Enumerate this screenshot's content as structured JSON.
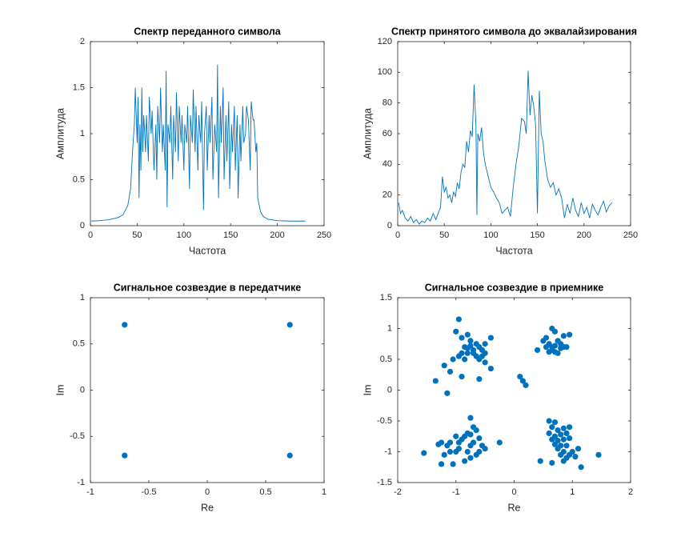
{
  "chart_data": [
    {
      "type": "line",
      "title": "Спектр переданного символа",
      "xlabel": "Частота",
      "ylabel": "Амплитуда",
      "color": "#0072BD",
      "x": [
        1,
        10,
        20,
        30,
        35,
        40,
        43,
        45,
        47,
        48,
        50,
        51,
        52,
        53,
        54,
        55,
        56,
        57,
        59,
        60,
        62,
        63,
        65,
        66,
        68,
        70,
        71,
        72,
        74,
        75,
        77,
        78,
        80,
        81,
        82,
        83,
        85,
        86,
        88,
        89,
        91,
        92,
        94,
        95,
        97,
        98,
        100,
        101,
        103,
        104,
        106,
        107,
        109,
        110,
        112,
        113,
        115,
        116,
        118,
        119,
        121,
        122,
        124,
        125,
        127,
        128,
        130,
        131,
        133,
        135,
        136,
        137,
        139,
        140,
        142,
        143,
        145,
        146,
        148,
        149,
        151,
        152,
        154,
        155,
        157,
        158,
        160,
        161,
        163,
        164,
        166,
        167,
        169,
        171,
        172,
        174,
        175,
        177,
        178,
        179,
        180,
        182,
        185,
        190,
        200,
        215,
        230
      ],
      "values": [
        0.05,
        0.055,
        0.065,
        0.09,
        0.12,
        0.22,
        0.4,
        0.8,
        1.1,
        1.5,
        0.9,
        1.4,
        0.3,
        1.1,
        0.6,
        1.5,
        0.8,
        1.2,
        0.8,
        1.2,
        0.7,
        1.4,
        1.0,
        1.25,
        0.6,
        1.1,
        0.5,
        1.3,
        0.9,
        1.5,
        0.8,
        1.1,
        0.6,
        1.68,
        0.2,
        1.1,
        0.9,
        1.3,
        0.5,
        1.2,
        0.8,
        1.45,
        0.7,
        1.3,
        0.9,
        1.2,
        0.6,
        1.1,
        0.9,
        1.3,
        0.4,
        1.2,
        0.9,
        1.48,
        0.8,
        1.3,
        0.6,
        1.2,
        0.9,
        1.35,
        0.17,
        1.0,
        1.3,
        0.6,
        1.2,
        0.9,
        1.4,
        0.5,
        1.1,
        0.8,
        1.75,
        0.3,
        1.3,
        0.9,
        1.5,
        0.5,
        1.2,
        0.7,
        1.35,
        0.4,
        1.1,
        0.8,
        1.3,
        0.6,
        1.2,
        0.3,
        1.1,
        0.7,
        1.3,
        0.9,
        1.0,
        1.3,
        1.15,
        0.6,
        1.35,
        1.15,
        1.15,
        0.8,
        0.9,
        0.3,
        0.25,
        0.15,
        0.1,
        0.07,
        0.055,
        0.05,
        0.05
      ],
      "xlim": [
        0,
        250
      ],
      "xticks": [
        0,
        50,
        100,
        150,
        200,
        250
      ],
      "ylim": [
        0,
        2
      ],
      "yticks": [
        0,
        0.5,
        1,
        1.5,
        2
      ]
    },
    {
      "type": "line",
      "title": "Спектр принятого символа до эквалайзирования",
      "xlabel": "Частота",
      "ylabel": "Амплитуда",
      "color": "#0072BD",
      "x": [
        1,
        3,
        5,
        8,
        11,
        14,
        17,
        20,
        23,
        26,
        29,
        32,
        35,
        38,
        41,
        44,
        46,
        48,
        50,
        52,
        54,
        56,
        58,
        60,
        62,
        64,
        66,
        68,
        70,
        72,
        74,
        76,
        78,
        80,
        82,
        84,
        85,
        86,
        88,
        90,
        92,
        94,
        96,
        98,
        100,
        103,
        106,
        109,
        112,
        115,
        118,
        121,
        124,
        127,
        130,
        133,
        136,
        138,
        140,
        142,
        144,
        146,
        148,
        150,
        152,
        154,
        156,
        158,
        161,
        164,
        167,
        170,
        173,
        176,
        179,
        182,
        185,
        188,
        191,
        194,
        197,
        200,
        203,
        206,
        209,
        212,
        215,
        218,
        221,
        224,
        227,
        230
      ],
      "values": [
        15,
        8,
        10,
        5,
        3,
        6,
        2,
        4,
        1,
        3,
        2,
        5,
        3,
        8,
        4,
        9,
        12,
        32,
        22,
        25,
        18,
        20,
        15,
        22,
        19,
        28,
        24,
        35,
        40,
        38,
        55,
        48,
        62,
        58,
        92,
        65,
        7,
        60,
        55,
        64,
        48,
        40,
        35,
        30,
        25,
        22,
        18,
        15,
        8,
        10,
        12,
        6,
        25,
        40,
        52,
        70,
        68,
        60,
        101,
        72,
        85,
        78,
        66,
        8,
        88,
        60,
        55,
        42,
        30,
        25,
        28,
        20,
        24,
        18,
        5,
        14,
        8,
        18,
        10,
        6,
        15,
        8,
        12,
        5,
        14,
        10,
        7,
        12,
        16,
        9,
        13,
        15
      ],
      "xlim": [
        0,
        250
      ],
      "xticks": [
        0,
        50,
        100,
        150,
        200,
        250
      ],
      "ylim": [
        0,
        120
      ],
      "yticks": [
        0,
        20,
        40,
        60,
        80,
        100,
        120
      ]
    },
    {
      "type": "scatter",
      "title": "Сигнальное созвездие в передатчике",
      "xlabel": "Re",
      "ylabel": "Im",
      "color": "#0072BD",
      "x": [
        -0.707,
        0.707,
        -0.707,
        0.707
      ],
      "values": [
        0.707,
        0.707,
        -0.707,
        -0.707
      ],
      "xlim": [
        -1,
        1
      ],
      "xticks": [
        -1,
        -0.5,
        0,
        0.5,
        1
      ],
      "ylim": [
        -1,
        1
      ],
      "yticks": [
        -1,
        -0.5,
        0,
        0.5,
        1
      ]
    },
    {
      "type": "scatter",
      "title": "Сигнальное созвездие в приемнике",
      "xlabel": "Re",
      "ylabel": "Im",
      "color": "#0072BD",
      "x": [
        -0.95,
        -0.8,
        -0.9,
        -1.0,
        -0.75,
        -0.65,
        -0.85,
        -0.75,
        -0.7,
        -0.6,
        -0.55,
        -0.5,
        -0.4,
        -0.5,
        -0.9,
        -0.95,
        -0.8,
        -0.65,
        -0.85,
        -0.55,
        -0.6,
        -0.5,
        -1.05,
        -1.2,
        -1.1,
        -0.4,
        -0.9,
        -0.6,
        -1.35,
        -1.15,
        -0.7,
        -0.8,
        0.1,
        0.15,
        0.2,
        0.4,
        0.5,
        0.55,
        0.65,
        0.7,
        0.75,
        0.6,
        0.65,
        0.7,
        0.8,
        0.85,
        0.9,
        0.95,
        0.85,
        0.6,
        0.7,
        0.75,
        0.55,
        0.65,
        0.8,
        -0.75,
        -0.7,
        -0.65,
        -0.8,
        -0.75,
        -0.85,
        -0.9,
        -1.0,
        -0.95,
        -0.7,
        -0.6,
        -0.55,
        -0.5,
        -0.6,
        -0.75,
        -0.8,
        -0.65,
        -1.1,
        -1.15,
        -1.25,
        -1.3,
        -1.0,
        -1.1,
        -1.2,
        -1.25,
        -1.05,
        -0.75,
        -0.85,
        -1.55,
        -0.25,
        -0.95,
        0.6,
        0.7,
        0.65,
        0.75,
        0.85,
        0.95,
        0.6,
        0.7,
        0.8,
        0.9,
        0.65,
        0.75,
        0.85,
        0.95,
        0.7,
        0.8,
        0.9,
        0.75,
        0.85,
        0.95,
        1.0,
        0.9,
        0.8,
        1.05,
        0.45,
        0.65,
        1.15,
        1.45,
        1.1,
        0.85
      ],
      "values": [
        1.15,
        0.9,
        0.85,
        0.95,
        0.8,
        0.75,
        0.7,
        0.72,
        0.65,
        0.7,
        0.65,
        0.6,
        0.85,
        0.75,
        0.6,
        0.55,
        0.6,
        0.55,
        0.5,
        0.55,
        0.5,
        0.45,
        0.5,
        0.4,
        0.3,
        0.35,
        0.22,
        0.18,
        0.15,
        -0.05,
        0.6,
        0.68,
        0.22,
        0.15,
        0.08,
        0.65,
        0.8,
        0.85,
        1.0,
        0.95,
        0.8,
        0.75,
        0.7,
        0.72,
        0.75,
        0.7,
        0.7,
        0.9,
        0.88,
        0.62,
        0.62,
        0.6,
        0.7,
        0.65,
        0.68,
        -0.45,
        -0.6,
        -0.65,
        -0.7,
        -0.72,
        -0.75,
        -0.8,
        -0.75,
        -0.85,
        -0.85,
        -0.78,
        -0.9,
        -0.95,
        -1.0,
        -0.9,
        -1.0,
        -1.05,
        -0.85,
        -0.9,
        -0.85,
        -0.88,
        -1.0,
        -1.0,
        -1.05,
        -1.2,
        -1.2,
        -1.1,
        -1.15,
        -1.02,
        -0.85,
        -0.95,
        -0.5,
        -0.52,
        -0.6,
        -0.65,
        -0.62,
        -0.6,
        -0.7,
        -0.75,
        -0.72,
        -0.7,
        -0.8,
        -0.82,
        -0.8,
        -0.78,
        -0.88,
        -0.9,
        -0.9,
        -0.95,
        -1.0,
        -1.05,
        -1.0,
        -1.1,
        -1.05,
        -1.08,
        -1.15,
        -1.18,
        -1.25,
        -1.05,
        -0.95,
        -1.15
      ],
      "xlim": [
        -2,
        2
      ],
      "xticks": [
        -2,
        -1,
        0,
        1,
        2
      ],
      "ylim": [
        -1.5,
        1.5
      ],
      "yticks": [
        -1.5,
        -1,
        -0.5,
        0,
        0.5,
        1,
        1.5
      ]
    }
  ]
}
